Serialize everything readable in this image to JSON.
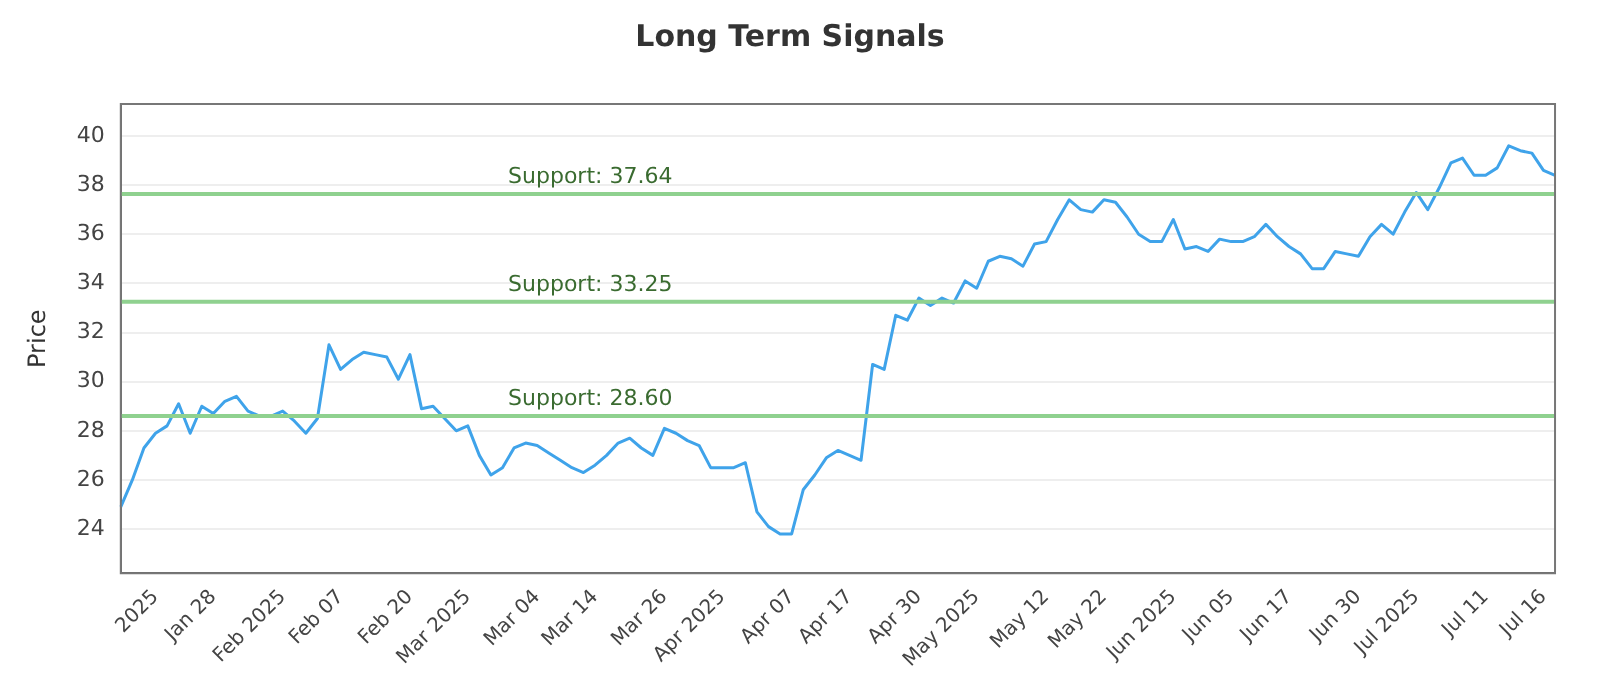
{
  "chart_data": {
    "type": "line",
    "title": "Long Term Signals",
    "ylabel": "Price",
    "categories": [
      null,
      null,
      null,
      "2025",
      null,
      null,
      null,
      null,
      "Jan 28",
      null,
      null,
      null,
      null,
      null,
      "Feb 2025",
      null,
      null,
      null,
      null,
      "Feb 07",
      null,
      null,
      null,
      null,
      null,
      "Feb 20",
      null,
      null,
      null,
      null,
      "Mar 2025",
      null,
      null,
      null,
      null,
      null,
      "Mar 04",
      null,
      null,
      null,
      null,
      "Mar 14",
      null,
      null,
      null,
      null,
      null,
      "Mar 26",
      null,
      null,
      null,
      null,
      "Apr 2025",
      null,
      null,
      null,
      null,
      null,
      "Apr 07",
      null,
      null,
      null,
      null,
      "Apr 17",
      null,
      null,
      null,
      null,
      null,
      "Apr 30",
      null,
      null,
      null,
      null,
      "May 2025",
      null,
      null,
      null,
      null,
      null,
      "May 12",
      null,
      null,
      null,
      null,
      "May 22",
      null,
      null,
      null,
      null,
      null,
      "Jun 2025",
      null,
      null,
      null,
      null,
      "Jun 05",
      null,
      null,
      null,
      null,
      "Jun 17",
      null,
      null,
      null,
      null,
      null,
      "Jun 30",
      null,
      null,
      null,
      null,
      "Jul 2025",
      null,
      null,
      null,
      null,
      null,
      "Jul 11",
      null,
      null,
      null,
      null,
      "Jul 16",
      null
    ],
    "series": [
      {
        "color": "#3fa3ea",
        "values": [
          24.9,
          26.0,
          27.3,
          27.9,
          28.2,
          29.1,
          27.9,
          29.0,
          28.7,
          29.2,
          29.4,
          28.8,
          28.6,
          28.6,
          28.8,
          28.4,
          27.9,
          28.5,
          31.5,
          30.5,
          30.9,
          31.2,
          31.1,
          31.0,
          30.1,
          31.1,
          28.9,
          29.0,
          28.5,
          28.0,
          28.2,
          27.0,
          26.2,
          26.5,
          27.3,
          27.5,
          27.4,
          27.1,
          26.8,
          26.5,
          26.3,
          26.6,
          27.0,
          27.5,
          27.7,
          27.3,
          27.0,
          28.1,
          27.9,
          27.6,
          27.4,
          26.5,
          26.5,
          26.5,
          26.7,
          24.7,
          24.1,
          23.8,
          23.8,
          25.6,
          26.2,
          26.9,
          27.2,
          27.0,
          26.8,
          30.7,
          30.5,
          32.7,
          32.5,
          33.4,
          33.1,
          33.4,
          33.2,
          34.1,
          33.8,
          34.9,
          35.1,
          35.0,
          34.7,
          35.6,
          35.7,
          36.6,
          37.4,
          37.0,
          36.9,
          37.4,
          37.3,
          36.7,
          36.0,
          35.7,
          35.7,
          36.6,
          35.4,
          35.5,
          35.3,
          35.8,
          35.7,
          35.7,
          35.9,
          36.4,
          35.9,
          35.5,
          35.2,
          34.6,
          34.6,
          35.3,
          35.2,
          35.1,
          35.9,
          36.4,
          36.0,
          36.9,
          37.7,
          37.0,
          37.9,
          38.9,
          39.1,
          38.4,
          38.4,
          38.7,
          39.6,
          39.4,
          39.3,
          38.6,
          38.4
        ]
      }
    ],
    "ylim": [
      22.2,
      41.3
    ],
    "yticks": [
      24,
      26,
      28,
      30,
      32,
      34,
      36,
      38,
      40
    ],
    "grid": "y",
    "legend": false,
    "marker": "none",
    "line_style": "solid",
    "ref_lines": [
      {
        "axis": "y",
        "value": 37.64,
        "label": "Support: 37.64",
        "color": "#8fd18f"
      },
      {
        "axis": "y",
        "value": 33.25,
        "label": "Support: 33.25",
        "color": "#8fd18f"
      },
      {
        "axis": "y",
        "value": 28.6,
        "label": "Support: 28.60",
        "color": "#8fd18f"
      }
    ]
  }
}
